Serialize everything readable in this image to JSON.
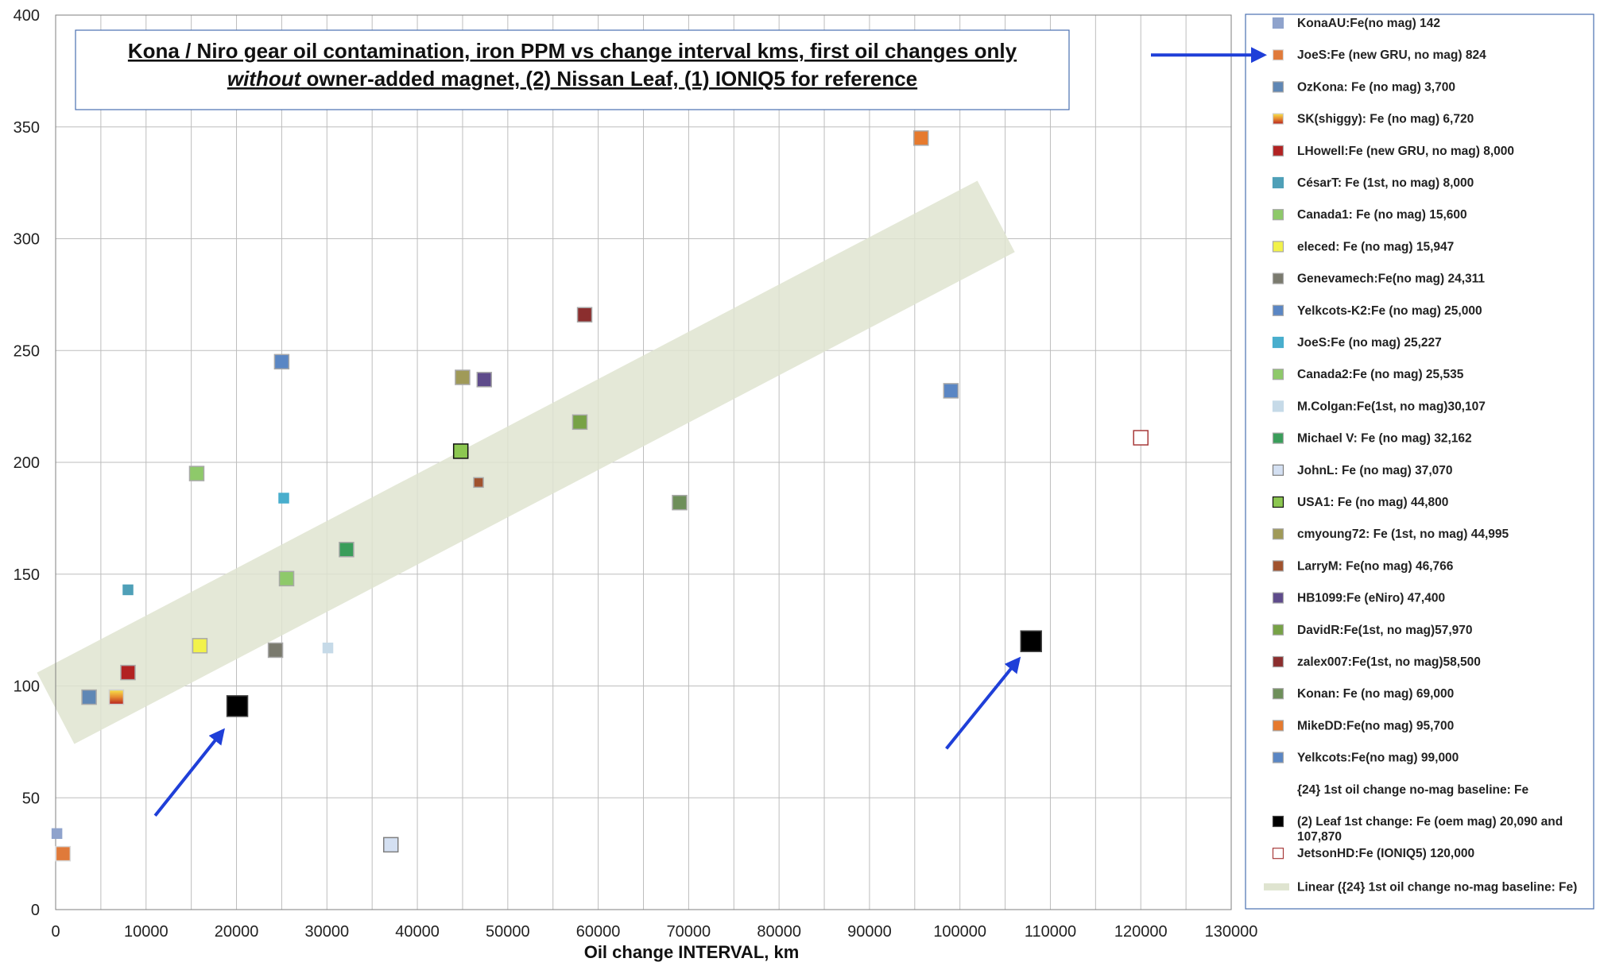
{
  "chart_data": {
    "type": "scatter",
    "title_line1": "Kona / Niro gear oil contamination, iron PPM vs change interval kms, first oil changes only",
    "title_line2_em": "without",
    "title_line2_rest": " owner-added magnet, (2) Nissan Leaf, (1) IONIQ5 for reference",
    "xlabel": "Oil change INTERVAL, km",
    "ylabel": "",
    "xlim": [
      0,
      130000
    ],
    "ylim": [
      0,
      400
    ],
    "x_ticks": [
      "0",
      "10000",
      "20000",
      "30000",
      "40000",
      "50000",
      "60000",
      "70000",
      "80000",
      "90000",
      "100000",
      "110000",
      "120000",
      "130000"
    ],
    "y_ticks": [
      "0",
      "50",
      "100",
      "150",
      "200",
      "250",
      "300",
      "350",
      "400"
    ],
    "grid": true,
    "legend_position": "right",
    "series": [
      {
        "name": "KonaAU:Fe(no mag) 142",
        "color": "#8fa3cc",
        "border": "#8fa3cc",
        "size": "small",
        "points": [
          [
            142,
            34
          ]
        ]
      },
      {
        "name": "JoeS:Fe (new GRU, no mag) 824",
        "color": "#e07a3a",
        "border": "#d9d9d9",
        "size": "medium",
        "points": [
          [
            824,
            25
          ]
        ]
      },
      {
        "name": "OzKona: Fe (no mag) 3,700",
        "color": "#5f87b5",
        "border": "#a9a9a9",
        "size": "medium",
        "points": [
          [
            3700,
            95
          ]
        ]
      },
      {
        "name": "SK(shiggy): Fe (no mag) 6,720",
        "color": "gradient-sk",
        "border": "#cfcfcf",
        "size": "medium",
        "points": [
          [
            6720,
            95
          ]
        ]
      },
      {
        "name": "LHowell:Fe (new GRU, no mag) 8,000",
        "color": "#b22222",
        "border": "#a9a9a9",
        "size": "medium",
        "points": [
          [
            8000,
            106
          ]
        ]
      },
      {
        "name": "CésarT: Fe (1st, no mag) 8,000",
        "color": "#4fa0b8",
        "border": "#4fa0b8",
        "size": "small",
        "points": [
          [
            8000,
            143
          ]
        ]
      },
      {
        "name": "Canada1: Fe (no mag) 15,600",
        "color": "#8ec96a",
        "border": "#a9a9a9",
        "size": "medium",
        "points": [
          [
            15600,
            195
          ]
        ]
      },
      {
        "name": "eleced: Fe (no mag) 15,947",
        "color": "#f2f24a",
        "border": "#a9a9a9",
        "size": "medium",
        "points": [
          [
            15947,
            118
          ]
        ]
      },
      {
        "name": "Genevamech:Fe(no mag) 24,311",
        "color": "#7a7a6e",
        "border": "#a9a9a9",
        "size": "medium",
        "points": [
          [
            24311,
            116
          ]
        ]
      },
      {
        "name": "Yelkcots-K2:Fe (no mag) 25,000",
        "color": "#5a86c4",
        "border": "#a9a9a9",
        "size": "medium",
        "points": [
          [
            25000,
            245
          ]
        ]
      },
      {
        "name": "JoeS:Fe (no mag) 25,227",
        "color": "#49aecd",
        "border": "#49aecd",
        "size": "small",
        "points": [
          [
            25227,
            184
          ]
        ]
      },
      {
        "name": "Canada2:Fe (no mag) 25,535",
        "color": "#8ec96a",
        "border": "#a9a9a9",
        "size": "medium",
        "points": [
          [
            25535,
            148
          ]
        ]
      },
      {
        "name": "M.Colgan:Fe(1st, no mag)30,107",
        "color": "#c6dae8",
        "border": "#c6dae8",
        "size": "small",
        "points": [
          [
            30107,
            117
          ]
        ]
      },
      {
        "name": "Michael V: Fe (no mag) 32,162",
        "color": "#3a9d5a",
        "border": "#a9a9a9",
        "size": "medium",
        "points": [
          [
            32162,
            161
          ]
        ]
      },
      {
        "name": "JohnL: Fe (no mag) 37,070",
        "color": "#d4e0f2",
        "border": "#7f7f7f",
        "size": "medium",
        "points": [
          [
            37070,
            29
          ]
        ]
      },
      {
        "name": "USA1: Fe (no mag) 44,800",
        "color": "#8cc751",
        "border": "#111111",
        "size": "medium",
        "points": [
          [
            44800,
            205
          ]
        ]
      },
      {
        "name": "cmyoung72: Fe (1st, no mag) 44,995",
        "color": "#a09a58",
        "border": "#a9a9a9",
        "size": "medium",
        "points": [
          [
            44995,
            238
          ]
        ]
      },
      {
        "name": "LarryM: Fe(no mag) 46,766",
        "color": "#a0522d",
        "border": "#a9a9a9",
        "size": "small",
        "points": [
          [
            46766,
            191
          ]
        ]
      },
      {
        "name": "HB1099:Fe (eNiro) 47,400",
        "color": "#5e4b8b",
        "border": "#a9a9a9",
        "size": "medium",
        "points": [
          [
            47400,
            237
          ]
        ]
      },
      {
        "name": "DavidR:Fe(1st, no mag)57,970",
        "color": "#77a246",
        "border": "#a9a9a9",
        "size": "medium",
        "points": [
          [
            57970,
            218
          ]
        ]
      },
      {
        "name": "zalex007:Fe(1st, no mag)58,500",
        "color": "#8b2e2e",
        "border": "#a9a9a9",
        "size": "medium",
        "points": [
          [
            58500,
            266
          ]
        ]
      },
      {
        "name": "Konan: Fe (no mag) 69,000",
        "color": "#6e8f5a",
        "border": "#a9a9a9",
        "size": "medium",
        "points": [
          [
            69000,
            182
          ]
        ]
      },
      {
        "name": "MikeDD:Fe(no mag) 95,700",
        "color": "#e67a2e",
        "border": "#a9a9a9",
        "size": "medium",
        "points": [
          [
            95700,
            345
          ]
        ]
      },
      {
        "name": "Yelkcots:Fe(no mag) 99,000",
        "color": "#5a86c4",
        "border": "#a9a9a9",
        "size": "medium",
        "points": [
          [
            99000,
            232
          ]
        ]
      },
      {
        "name": "{24} 1st oil change no-mag baseline: Fe",
        "color": "none",
        "border": "none",
        "size": "none",
        "points": []
      },
      {
        "name_line1": "(2) Leaf 1st change: Fe (oem mag) 20,090 and",
        "name_line2": "107,870",
        "color": "#000000",
        "border": "#444444",
        "size": "large",
        "points": [
          [
            20090,
            91
          ],
          [
            107870,
            120
          ]
        ]
      },
      {
        "name": "JetsonHD:Fe (IONIQ5) 120,000",
        "color": "#ffffff",
        "border": "#a83a3a",
        "size": "medium",
        "points": [
          [
            120000,
            211
          ]
        ]
      }
    ],
    "trend_band": {
      "name": "Linear ({24} 1st oil change no-mag baseline: Fe)",
      "color": "#dfe4d0",
      "start": [
        0,
        90
      ],
      "end": [
        104000,
        310
      ],
      "half_width": 18
    },
    "arrows": [
      {
        "from": [
          11000,
          42
        ],
        "to": [
          18500,
          80
        ]
      },
      {
        "from": [
          98500,
          72
        ],
        "to": [
          106500,
          112
        ]
      }
    ],
    "legend_arrow_target": 1,
    "arrow_color": "#1f3fd8"
  }
}
